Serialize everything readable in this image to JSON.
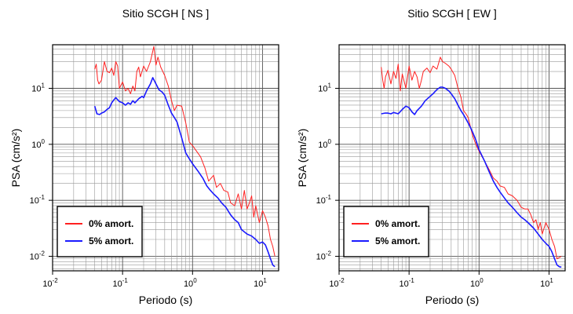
{
  "chart_data": [
    {
      "type": "line",
      "title": "Sitio SCGH [ NS ]",
      "xlabel": "Periodo (s)",
      "ylabel": "PSA (cm/s²)",
      "x_scale": "log",
      "y_scale": "log",
      "xlim": [
        0.01,
        17
      ],
      "ylim": [
        0.0055,
        60
      ],
      "grid": true,
      "legend_position": "bottom-left",
      "x_ticks": [
        {
          "base": "10",
          "exp": "-2"
        },
        {
          "base": "10",
          "exp": "-1"
        },
        {
          "base": "10",
          "exp": "0"
        },
        {
          "base": "10",
          "exp": "1"
        }
      ],
      "y_ticks": [
        {
          "base": "10",
          "exp": "-2"
        },
        {
          "base": "10",
          "exp": "-1"
        },
        {
          "base": "10",
          "exp": "0"
        },
        {
          "base": "10",
          "exp": "1"
        }
      ],
      "series": [
        {
          "name": "0% amort.",
          "color": "#ff2020",
          "points": [
            [
              0.04,
              22
            ],
            [
              0.042,
              27
            ],
            [
              0.044,
              14
            ],
            [
              0.046,
              12
            ],
            [
              0.05,
              14
            ],
            [
              0.055,
              30
            ],
            [
              0.06,
              20
            ],
            [
              0.065,
              19
            ],
            [
              0.07,
              23
            ],
            [
              0.075,
              17
            ],
            [
              0.08,
              30
            ],
            [
              0.085,
              25
            ],
            [
              0.09,
              10
            ],
            [
              0.1,
              13
            ],
            [
              0.11,
              9
            ],
            [
              0.12,
              10
            ],
            [
              0.13,
              8
            ],
            [
              0.14,
              11
            ],
            [
              0.15,
              9
            ],
            [
              0.16,
              20
            ],
            [
              0.17,
              24
            ],
            [
              0.18,
              16
            ],
            [
              0.2,
              25
            ],
            [
              0.22,
              20
            ],
            [
              0.25,
              30
            ],
            [
              0.28,
              56
            ],
            [
              0.3,
              26
            ],
            [
              0.32,
              36
            ],
            [
              0.35,
              24
            ],
            [
              0.4,
              17
            ],
            [
              0.45,
              11
            ],
            [
              0.5,
              6
            ],
            [
              0.55,
              4
            ],
            [
              0.6,
              5
            ],
            [
              0.7,
              4.8
            ],
            [
              0.8,
              2.4
            ],
            [
              0.9,
              1.1
            ],
            [
              1.0,
              0.95
            ],
            [
              1.1,
              0.8
            ],
            [
              1.3,
              0.6
            ],
            [
              1.5,
              0.38
            ],
            [
              1.7,
              0.22
            ],
            [
              2.0,
              0.28
            ],
            [
              2.2,
              0.17
            ],
            [
              2.5,
              0.2
            ],
            [
              2.8,
              0.15
            ],
            [
              3.2,
              0.14
            ],
            [
              3.5,
              0.09
            ],
            [
              4.0,
              0.08
            ],
            [
              4.5,
              0.13
            ],
            [
              5.0,
              0.07
            ],
            [
              5.5,
              0.15
            ],
            [
              6.0,
              0.07
            ],
            [
              6.5,
              0.09
            ],
            [
              7.0,
              0.12
            ],
            [
              7.5,
              0.05
            ],
            [
              8.0,
              0.08
            ],
            [
              9.0,
              0.04
            ],
            [
              10,
              0.065
            ],
            [
              11,
              0.05
            ],
            [
              12,
              0.035
            ],
            [
              13,
              0.02
            ],
            [
              14,
              0.015
            ],
            [
              15,
              0.01
            ]
          ]
        },
        {
          "name": "5% amort.",
          "color": "#1a1aff",
          "points": [
            [
              0.04,
              4.8
            ],
            [
              0.043,
              3.5
            ],
            [
              0.047,
              3.4
            ],
            [
              0.05,
              3.6
            ],
            [
              0.055,
              3.8
            ],
            [
              0.06,
              4.2
            ],
            [
              0.065,
              4.5
            ],
            [
              0.07,
              5.5
            ],
            [
              0.075,
              6.2
            ],
            [
              0.08,
              6.8
            ],
            [
              0.09,
              5.8
            ],
            [
              0.1,
              5.5
            ],
            [
              0.11,
              5.0
            ],
            [
              0.12,
              5.5
            ],
            [
              0.13,
              5.2
            ],
            [
              0.14,
              6.0
            ],
            [
              0.15,
              5.5
            ],
            [
              0.17,
              6.5
            ],
            [
              0.19,
              7.2
            ],
            [
              0.2,
              6.8
            ],
            [
              0.22,
              9.0
            ],
            [
              0.25,
              12
            ],
            [
              0.27,
              15.5
            ],
            [
              0.3,
              12
            ],
            [
              0.33,
              9.5
            ],
            [
              0.37,
              8.5
            ],
            [
              0.4,
              7.5
            ],
            [
              0.45,
              5.0
            ],
            [
              0.5,
              3.6
            ],
            [
              0.55,
              3.0
            ],
            [
              0.6,
              2.5
            ],
            [
              0.7,
              1.3
            ],
            [
              0.8,
              0.7
            ],
            [
              0.9,
              0.55
            ],
            [
              1.0,
              0.45
            ],
            [
              1.2,
              0.33
            ],
            [
              1.4,
              0.25
            ],
            [
              1.6,
              0.18
            ],
            [
              1.8,
              0.15
            ],
            [
              2.0,
              0.13
            ],
            [
              2.3,
              0.11
            ],
            [
              2.6,
              0.09
            ],
            [
              3.0,
              0.075
            ],
            [
              3.5,
              0.055
            ],
            [
              4.0,
              0.045
            ],
            [
              4.5,
              0.04
            ],
            [
              5.0,
              0.03
            ],
            [
              6.0,
              0.025
            ],
            [
              7.0,
              0.023
            ],
            [
              8.0,
              0.02
            ],
            [
              9.0,
              0.017
            ],
            [
              10,
              0.018
            ],
            [
              11,
              0.016
            ],
            [
              12,
              0.012
            ],
            [
              13,
              0.009
            ],
            [
              14,
              0.007
            ],
            [
              15,
              0.0065
            ]
          ]
        }
      ]
    },
    {
      "type": "line",
      "title": "Sitio SCGH [ EW ]",
      "xlabel": "Periodo (s)",
      "ylabel": "PSA (cm/s²)",
      "x_scale": "log",
      "y_scale": "log",
      "xlim": [
        0.01,
        17
      ],
      "ylim": [
        0.0055,
        60
      ],
      "grid": true,
      "legend_position": "bottom-left",
      "x_ticks": [
        {
          "base": "10",
          "exp": "-2"
        },
        {
          "base": "10",
          "exp": "-1"
        },
        {
          "base": "10",
          "exp": "0"
        },
        {
          "base": "10",
          "exp": "1"
        }
      ],
      "y_ticks": [
        {
          "base": "10",
          "exp": "-2"
        },
        {
          "base": "10",
          "exp": "-1"
        },
        {
          "base": "10",
          "exp": "0"
        },
        {
          "base": "10",
          "exp": "1"
        }
      ],
      "series": [
        {
          "name": "0% amort.",
          "color": "#ff2020",
          "points": [
            [
              0.04,
              24
            ],
            [
              0.042,
              14
            ],
            [
              0.044,
              10
            ],
            [
              0.046,
              16
            ],
            [
              0.05,
              21
            ],
            [
              0.055,
              12
            ],
            [
              0.06,
              20
            ],
            [
              0.065,
              15
            ],
            [
              0.07,
              27
            ],
            [
              0.075,
              9
            ],
            [
              0.08,
              18
            ],
            [
              0.09,
              10
            ],
            [
              0.1,
              25
            ],
            [
              0.11,
              14
            ],
            [
              0.12,
              20
            ],
            [
              0.13,
              16
            ],
            [
              0.14,
              10
            ],
            [
              0.15,
              14
            ],
            [
              0.16,
              20
            ],
            [
              0.18,
              23
            ],
            [
              0.2,
              19
            ],
            [
              0.22,
              25
            ],
            [
              0.25,
              22
            ],
            [
              0.28,
              36
            ],
            [
              0.3,
              30
            ],
            [
              0.33,
              28
            ],
            [
              0.37,
              25
            ],
            [
              0.4,
              22
            ],
            [
              0.45,
              17
            ],
            [
              0.5,
              10
            ],
            [
              0.55,
              7
            ],
            [
              0.6,
              4
            ],
            [
              0.65,
              3.5
            ],
            [
              0.7,
              3.0
            ],
            [
              0.8,
              1.5
            ],
            [
              0.9,
              1.0
            ],
            [
              1.0,
              0.75
            ],
            [
              1.2,
              0.5
            ],
            [
              1.4,
              0.35
            ],
            [
              1.6,
              0.25
            ],
            [
              1.8,
              0.22
            ],
            [
              2.0,
              0.18
            ],
            [
              2.3,
              0.17
            ],
            [
              2.6,
              0.13
            ],
            [
              3.0,
              0.12
            ],
            [
              3.5,
              0.1
            ],
            [
              4.0,
              0.075
            ],
            [
              4.5,
              0.07
            ],
            [
              5.0,
              0.07
            ],
            [
              5.5,
              0.055
            ],
            [
              6.0,
              0.04
            ],
            [
              6.5,
              0.045
            ],
            [
              7.0,
              0.03
            ],
            [
              7.5,
              0.04
            ],
            [
              8.0,
              0.025
            ],
            [
              9.0,
              0.04
            ],
            [
              10,
              0.03
            ],
            [
              11,
              0.02
            ],
            [
              12,
              0.015
            ],
            [
              13,
              0.009
            ],
            [
              14,
              0.0095
            ],
            [
              15,
              0.01
            ]
          ]
        },
        {
          "name": "5% amort.",
          "color": "#1a1aff",
          "points": [
            [
              0.04,
              3.5
            ],
            [
              0.045,
              3.6
            ],
            [
              0.05,
              3.6
            ],
            [
              0.055,
              3.5
            ],
            [
              0.06,
              3.7
            ],
            [
              0.065,
              3.6
            ],
            [
              0.07,
              3.5
            ],
            [
              0.08,
              4.2
            ],
            [
              0.09,
              4.8
            ],
            [
              0.1,
              4.5
            ],
            [
              0.11,
              3.8
            ],
            [
              0.12,
              3.4
            ],
            [
              0.13,
              4.0
            ],
            [
              0.15,
              4.8
            ],
            [
              0.17,
              6.0
            ],
            [
              0.2,
              7.2
            ],
            [
              0.22,
              8.0
            ],
            [
              0.25,
              9.5
            ],
            [
              0.28,
              10.5
            ],
            [
              0.3,
              10.5
            ],
            [
              0.33,
              10
            ],
            [
              0.37,
              9
            ],
            [
              0.4,
              8
            ],
            [
              0.45,
              6.5
            ],
            [
              0.5,
              5
            ],
            [
              0.55,
              4
            ],
            [
              0.6,
              3.4
            ],
            [
              0.7,
              2.4
            ],
            [
              0.8,
              1.7
            ],
            [
              0.9,
              1.2
            ],
            [
              1.0,
              0.8
            ],
            [
              1.2,
              0.5
            ],
            [
              1.4,
              0.32
            ],
            [
              1.6,
              0.22
            ],
            [
              1.8,
              0.17
            ],
            [
              2.0,
              0.14
            ],
            [
              2.3,
              0.11
            ],
            [
              2.6,
              0.09
            ],
            [
              3.0,
              0.075
            ],
            [
              3.5,
              0.06
            ],
            [
              4.0,
              0.05
            ],
            [
              4.5,
              0.045
            ],
            [
              5.0,
              0.04
            ],
            [
              6.0,
              0.032
            ],
            [
              7.0,
              0.025
            ],
            [
              8.0,
              0.02
            ],
            [
              9.0,
              0.017
            ],
            [
              10,
              0.015
            ],
            [
              11,
              0.012
            ],
            [
              12,
              0.009
            ],
            [
              13,
              0.007
            ],
            [
              14,
              0.0065
            ],
            [
              15,
              0.0064
            ]
          ]
        }
      ]
    }
  ]
}
